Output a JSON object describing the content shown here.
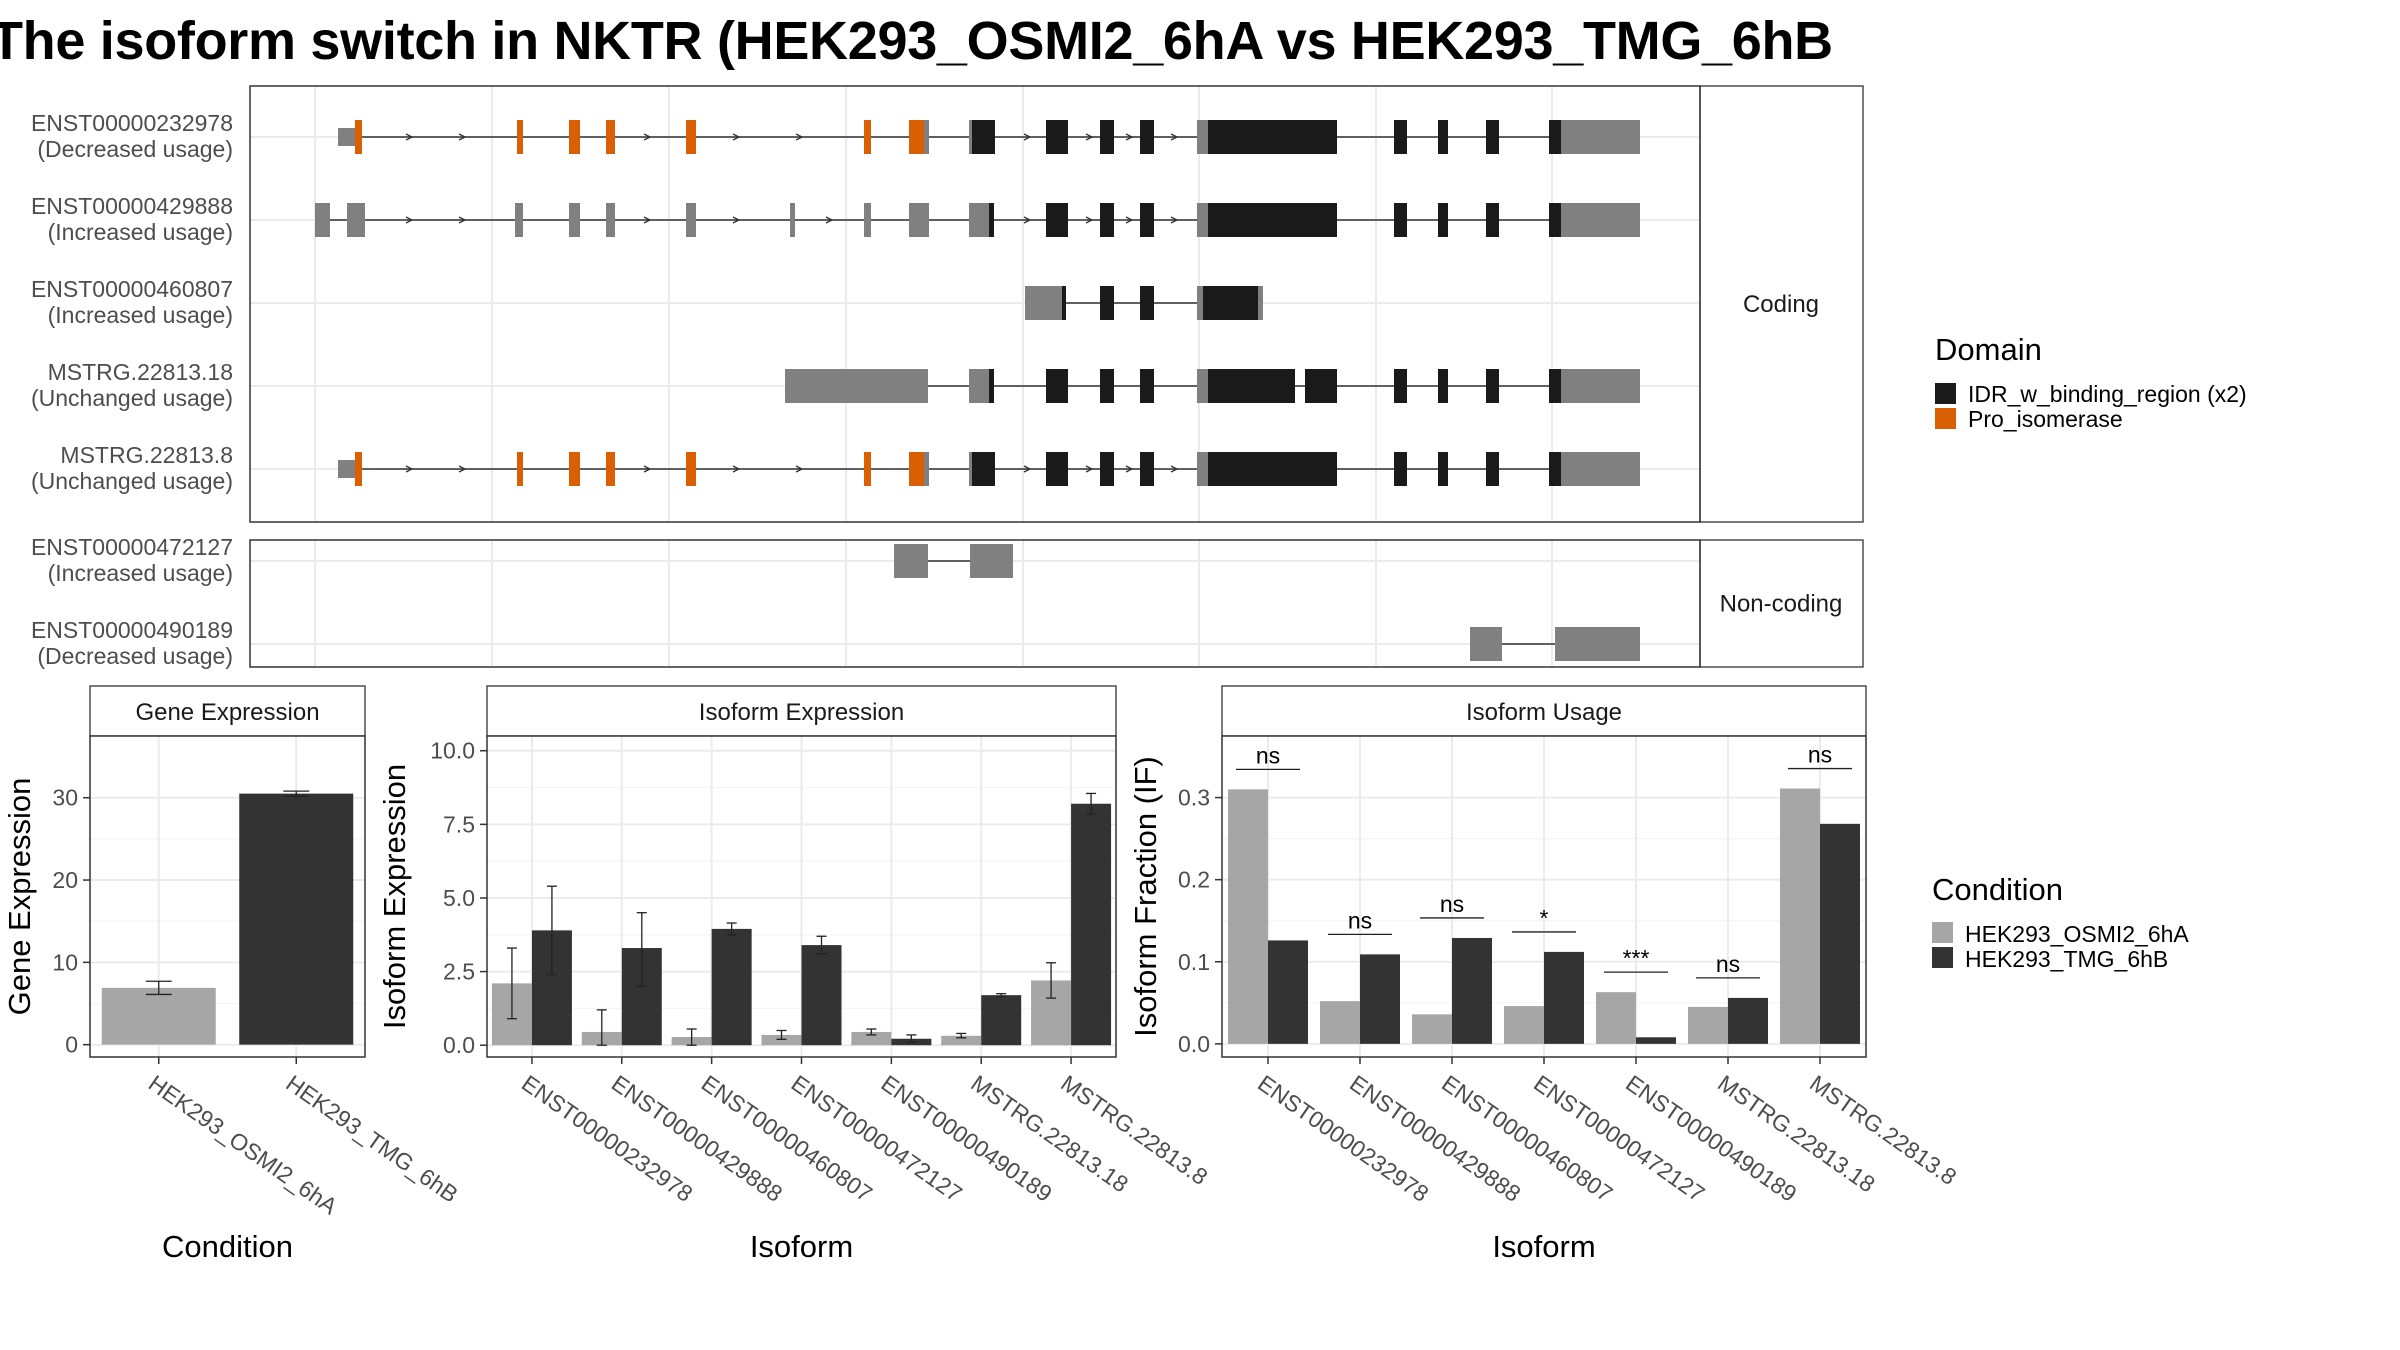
{
  "title": "The isoform switch in NKTR (HEK293_OSMI2_6hA vs HEK293_TMG_6hB",
  "colors": {
    "domain_idr": "#1a1a1a",
    "domain_pro": "#d95f02",
    "exon_plain": "#808080",
    "condition_a": "#a6a6a6",
    "condition_b": "#333333",
    "strip_bg": "#ffffff",
    "grid": "#ebebeb"
  },
  "chart_data": [
    {
      "type": "gene-structure",
      "facets": [
        "Coding",
        "Non-coding"
      ],
      "transcripts": [
        {
          "name": "ENST00000232978",
          "usage": "(Decreased usage)",
          "facet": "Coding"
        },
        {
          "name": "ENST00000429888",
          "usage": "(Increased usage)",
          "facet": "Coding"
        },
        {
          "name": "ENST00000460807",
          "usage": "(Increased usage)",
          "facet": "Coding"
        },
        {
          "name": "MSTRG.22813.18",
          "usage": "(Unchanged usage)",
          "facet": "Coding"
        },
        {
          "name": "MSTRG.22813.8",
          "usage": "(Unchanged usage)",
          "facet": "Coding"
        },
        {
          "name": "ENST00000472127",
          "usage": "(Increased usage)",
          "facet": "Non-coding"
        },
        {
          "name": "ENST00000490189",
          "usage": "(Decreased usage)",
          "facet": "Non-coding"
        }
      ],
      "legend": {
        "title": "Domain",
        "items": [
          {
            "label": "IDR_w_binding_region (x2)",
            "color": "#1a1a1a"
          },
          {
            "label": "Pro_isomerase",
            "color": "#d95f02"
          }
        ]
      }
    },
    {
      "type": "bar",
      "title": "Gene Expression",
      "xlabel": "Condition",
      "ylabel": "Gene Expression",
      "categories": [
        "HEK293_OSMI2_6hA",
        "HEK293_TMG_6hB"
      ],
      "values": [
        6.9,
        30.5
      ],
      "errors": [
        [
          6.1,
          7.7
        ],
        [
          30.2,
          30.8
        ]
      ],
      "ylim": [
        -1.5,
        37.5
      ],
      "yticks": [
        0,
        10,
        20,
        30
      ],
      "ytick_labels": [
        "0",
        "10",
        "20",
        "30"
      ]
    },
    {
      "type": "bar",
      "title": "Isoform Expression",
      "xlabel": "Isoform",
      "ylabel": "Isoform Expression",
      "categories": [
        "ENST00000232978",
        "ENST00000429888",
        "ENST00000460807",
        "ENST00000472127",
        "ENST00000490189",
        "MSTRG.22813.18",
        "MSTRG.22813.8"
      ],
      "series": [
        {
          "name": "HEK293_OSMI2_6hA",
          "values": [
            2.1,
            0.45,
            0.28,
            0.35,
            0.45,
            0.32,
            2.2
          ],
          "errors": [
            [
              0.9,
              3.3
            ],
            [
              0.0,
              1.2
            ],
            [
              0.0,
              0.55
            ],
            [
              0.2,
              0.5
            ],
            [
              0.35,
              0.55
            ],
            [
              0.25,
              0.4
            ],
            [
              1.6,
              2.8
            ]
          ]
        },
        {
          "name": "HEK293_TMG_6hB",
          "values": [
            3.9,
            3.3,
            3.95,
            3.4,
            0.22,
            1.7,
            8.2
          ],
          "errors": [
            [
              2.4,
              5.4
            ],
            [
              2.0,
              4.5
            ],
            [
              3.75,
              4.15
            ],
            [
              3.1,
              3.7
            ],
            [
              0.1,
              0.35
            ],
            [
              1.65,
              1.75
            ],
            [
              7.85,
              8.55
            ]
          ]
        }
      ],
      "ylim": [
        -0.4,
        10.5
      ],
      "yticks": [
        0,
        2.5,
        5,
        7.5,
        10
      ],
      "ytick_labels": [
        "0.0",
        "2.5",
        "5.0",
        "7.5",
        "10.0"
      ]
    },
    {
      "type": "bar",
      "title": "Isoform Usage",
      "xlabel": "Isoform",
      "ylabel": "Isoform Fraction (IF)",
      "categories": [
        "ENST00000232978",
        "ENST00000429888",
        "ENST00000460807",
        "ENST00000472127",
        "ENST00000490189",
        "MSTRG.22813.18",
        "MSTRG.22813.8"
      ],
      "series": [
        {
          "name": "HEK293_OSMI2_6hA",
          "values": [
            0.31,
            0.052,
            0.036,
            0.046,
            0.063,
            0.045,
            0.311
          ]
        },
        {
          "name": "HEK293_TMG_6hB",
          "values": [
            0.126,
            0.109,
            0.129,
            0.112,
            0.008,
            0.056,
            0.268
          ]
        }
      ],
      "significance": [
        "ns",
        "ns",
        "ns",
        "*",
        "***",
        "ns",
        "ns"
      ],
      "ylim": [
        -0.016,
        0.375
      ],
      "yticks": [
        0,
        0.1,
        0.2,
        0.3
      ],
      "ytick_labels": [
        "0.0",
        "0.1",
        "0.2",
        "0.3"
      ],
      "legend": {
        "title": "Condition",
        "items": [
          {
            "label": "HEK293_OSMI2_6hA",
            "color": "#a6a6a6"
          },
          {
            "label": "HEK293_TMG_6hB",
            "color": "#333333"
          }
        ]
      }
    }
  ]
}
